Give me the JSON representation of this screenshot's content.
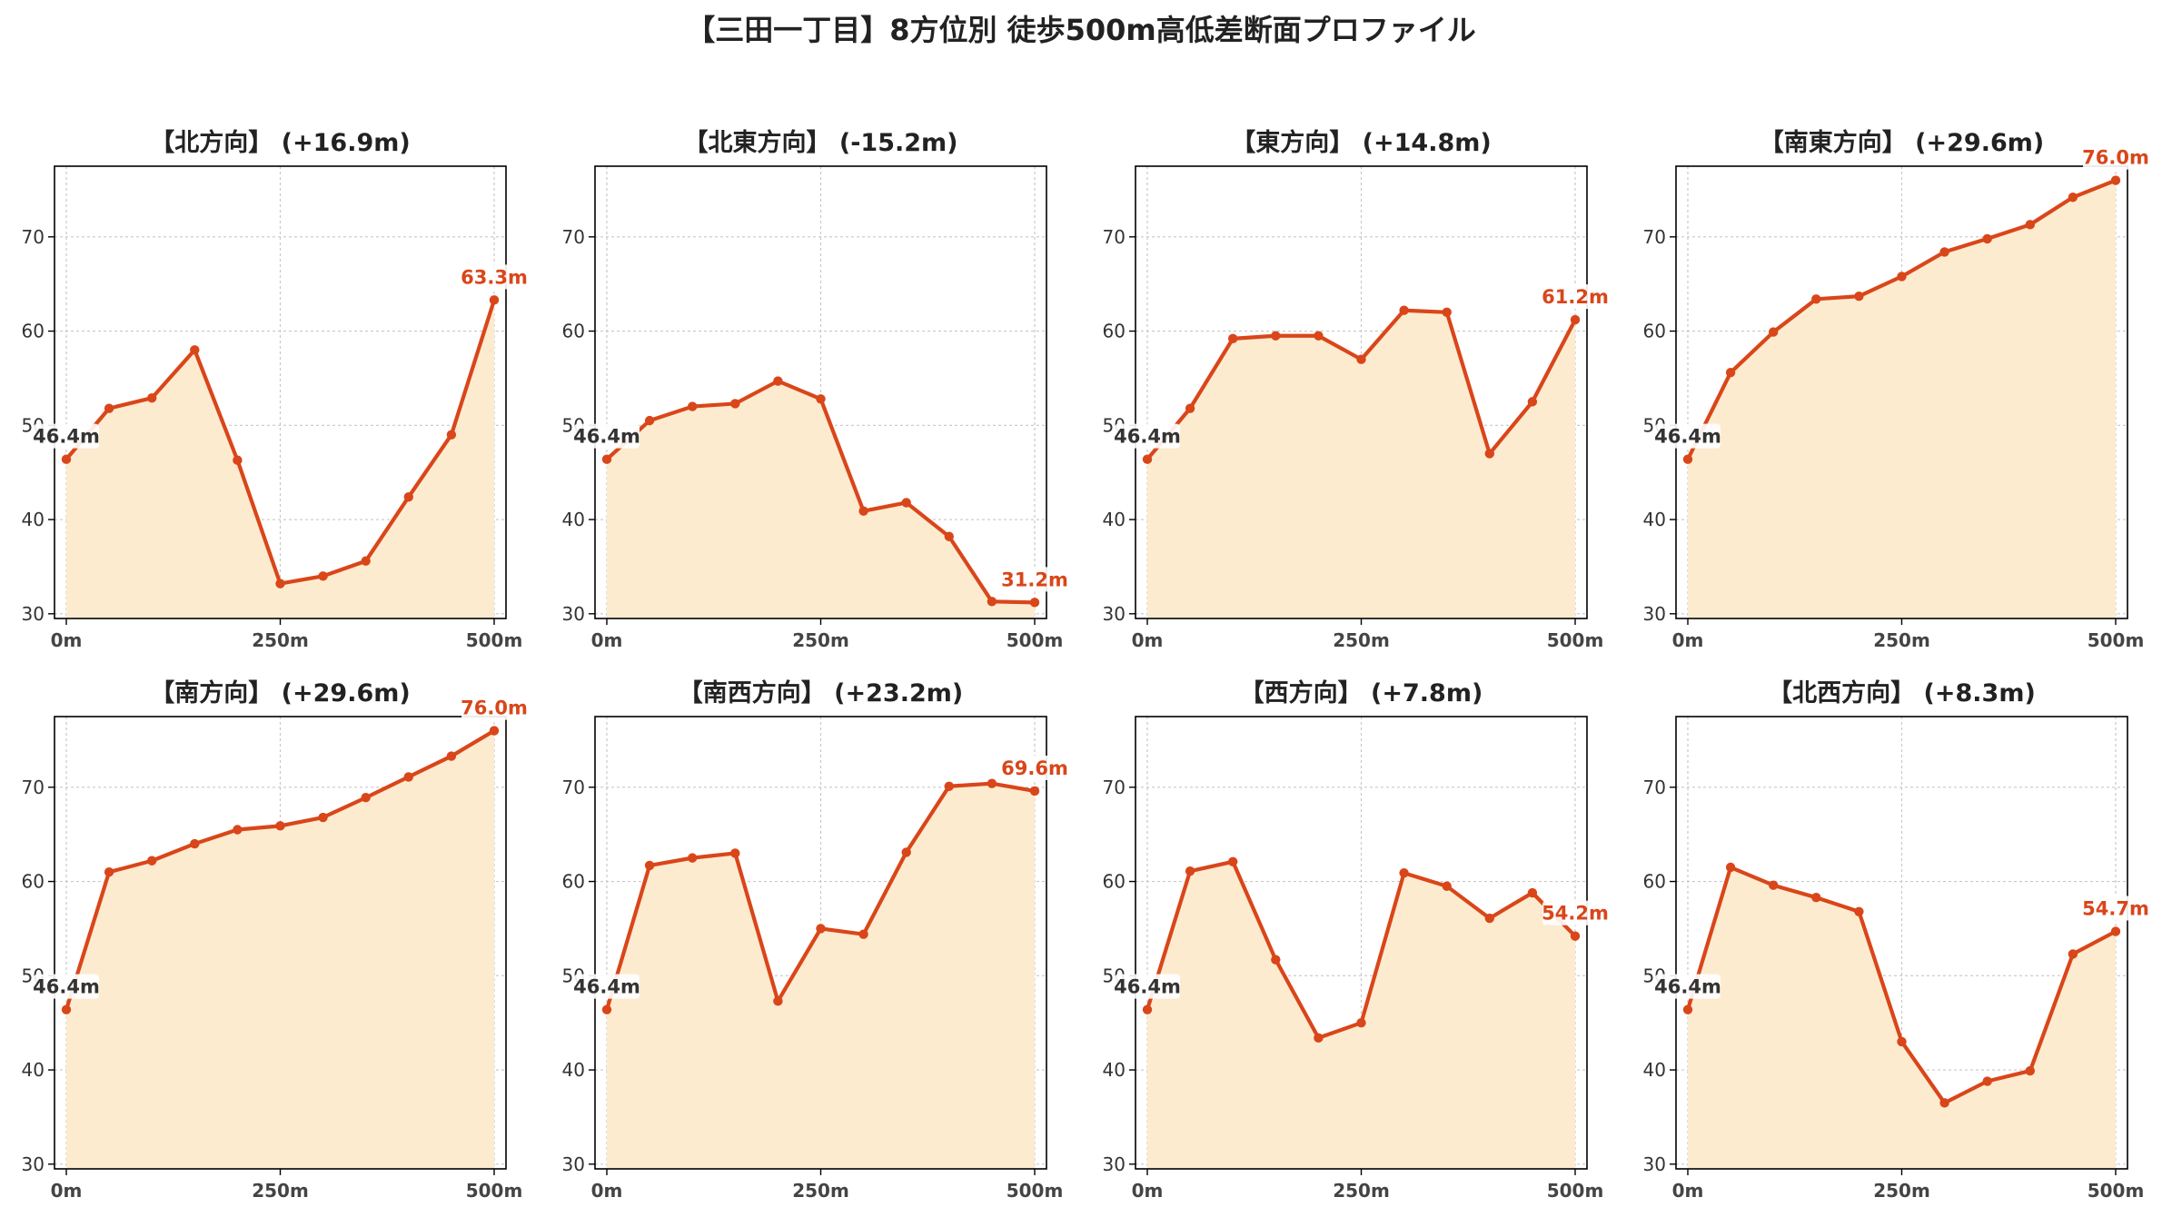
{
  "title": "【三田一丁目】8方位別 徒歩500m高低差断面プロファイル",
  "colors": {
    "line": "#d9461a",
    "fill": "#fdebd0",
    "grid": "#c8c8c8",
    "axis": "#000000"
  },
  "chart_data": [
    {
      "type": "area",
      "title": "【北方向】 (+16.9m)",
      "x": [
        0,
        50,
        100,
        150,
        200,
        250,
        300,
        350,
        400,
        450,
        500
      ],
      "y": [
        46.4,
        51.8,
        52.9,
        58.0,
        46.3,
        33.2,
        34.0,
        35.6,
        42.4,
        49.0,
        63.3
      ],
      "xticks": [
        "0m",
        "250m",
        "500m"
      ],
      "yticks": [
        30,
        40,
        50,
        60,
        70
      ],
      "ylim": [
        29.5,
        77.5
      ],
      "start_label": "46.4m",
      "end_label": "63.3m",
      "grid": true
    },
    {
      "type": "area",
      "title": "【北東方向】 (-15.2m)",
      "x": [
        0,
        50,
        100,
        150,
        200,
        250,
        300,
        350,
        400,
        450,
        500
      ],
      "y": [
        46.4,
        50.5,
        52.0,
        52.3,
        54.7,
        52.8,
        40.9,
        41.8,
        38.2,
        31.3,
        31.2
      ],
      "xticks": [
        "0m",
        "250m",
        "500m"
      ],
      "yticks": [
        30,
        40,
        50,
        60,
        70
      ],
      "ylim": [
        29.5,
        77.5
      ],
      "start_label": "46.4m",
      "end_label": "31.2m",
      "grid": true
    },
    {
      "type": "area",
      "title": "【東方向】 (+14.8m)",
      "x": [
        0,
        50,
        100,
        150,
        200,
        250,
        300,
        350,
        400,
        450,
        500
      ],
      "y": [
        46.4,
        51.8,
        59.2,
        59.5,
        59.5,
        57.0,
        62.2,
        62.0,
        47.0,
        52.5,
        61.2
      ],
      "xticks": [
        "0m",
        "250m",
        "500m"
      ],
      "yticks": [
        30,
        40,
        50,
        60,
        70
      ],
      "ylim": [
        29.5,
        77.5
      ],
      "start_label": "46.4m",
      "end_label": "61.2m",
      "grid": true
    },
    {
      "type": "area",
      "title": "【南東方向】 (+29.6m)",
      "x": [
        0,
        50,
        100,
        150,
        200,
        250,
        300,
        350,
        400,
        450,
        500
      ],
      "y": [
        46.4,
        55.6,
        59.9,
        63.4,
        63.7,
        65.8,
        68.4,
        69.8,
        71.3,
        74.2,
        76.0
      ],
      "xticks": [
        "0m",
        "250m",
        "500m"
      ],
      "yticks": [
        30,
        40,
        50,
        60,
        70
      ],
      "ylim": [
        29.5,
        77.5
      ],
      "start_label": "46.4m",
      "end_label": "76.0m",
      "grid": true
    },
    {
      "type": "area",
      "title": "【南方向】 (+29.6m)",
      "x": [
        0,
        50,
        100,
        150,
        200,
        250,
        300,
        350,
        400,
        450,
        500
      ],
      "y": [
        46.4,
        61.0,
        62.2,
        64.0,
        65.5,
        65.9,
        66.8,
        68.9,
        71.1,
        73.3,
        76.0
      ],
      "xticks": [
        "0m",
        "250m",
        "500m"
      ],
      "yticks": [
        30,
        40,
        50,
        60,
        70
      ],
      "ylim": [
        29.5,
        77.5
      ],
      "start_label": "46.4m",
      "end_label": "76.0m",
      "grid": true
    },
    {
      "type": "area",
      "title": "【南西方向】 (+23.2m)",
      "x": [
        0,
        50,
        100,
        150,
        200,
        250,
        300,
        350,
        400,
        450,
        500
      ],
      "y": [
        46.4,
        61.7,
        62.5,
        63.0,
        47.3,
        55.0,
        54.4,
        63.1,
        70.1,
        70.4,
        69.6
      ],
      "xticks": [
        "0m",
        "250m",
        "500m"
      ],
      "yticks": [
        30,
        40,
        50,
        60,
        70
      ],
      "ylim": [
        29.5,
        77.5
      ],
      "start_label": "46.4m",
      "end_label": "69.6m",
      "grid": true
    },
    {
      "type": "area",
      "title": "【西方向】 (+7.8m)",
      "x": [
        0,
        50,
        100,
        150,
        200,
        250,
        300,
        350,
        400,
        450,
        500
      ],
      "y": [
        46.4,
        61.1,
        62.1,
        51.7,
        43.4,
        45.0,
        60.9,
        59.5,
        56.1,
        58.8,
        54.2
      ],
      "xticks": [
        "0m",
        "250m",
        "500m"
      ],
      "yticks": [
        30,
        40,
        50,
        60,
        70
      ],
      "ylim": [
        29.5,
        77.5
      ],
      "start_label": "46.4m",
      "end_label": "54.2m",
      "grid": true
    },
    {
      "type": "area",
      "title": "【北西方向】 (+8.3m)",
      "x": [
        0,
        50,
        100,
        150,
        200,
        250,
        300,
        350,
        400,
        450,
        500
      ],
      "y": [
        46.4,
        61.5,
        59.6,
        58.3,
        56.8,
        43.0,
        36.5,
        38.8,
        39.9,
        52.3,
        54.7
      ],
      "xticks": [
        "0m",
        "250m",
        "500m"
      ],
      "yticks": [
        30,
        40,
        50,
        60,
        70
      ],
      "ylim": [
        29.5,
        77.5
      ],
      "start_label": "46.4m",
      "end_label": "54.7m",
      "grid": true
    }
  ]
}
